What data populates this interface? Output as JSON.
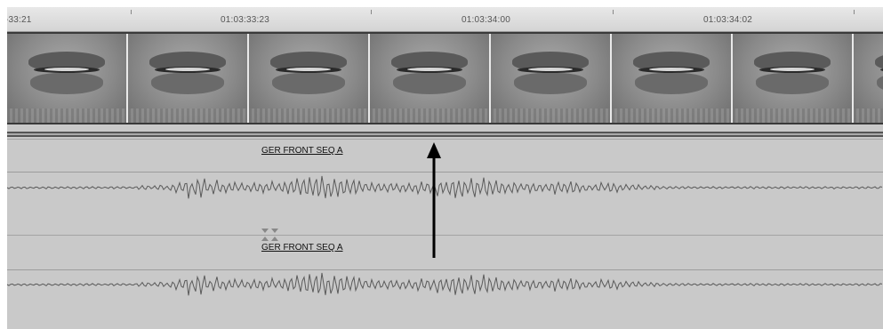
{
  "ruler": {
    "timecodes": [
      {
        "label": "-33:21"
      },
      {
        "label": "01:03:33:23"
      },
      {
        "label": "01:03:34:00"
      },
      {
        "label": "01:03:34:02"
      }
    ]
  },
  "video_track": {
    "frame_count": 8
  },
  "audio_tracks": [
    {
      "clip_name": "GER FRONT SEQ A"
    },
    {
      "clip_name": "GER FRONT SEQ A"
    }
  ],
  "colors": {
    "ruler": "#dcdcdc",
    "track_bg": "#c9c9c9",
    "waveform": "#5a5a5a",
    "arrow": "#000000"
  },
  "icons": {
    "in_out_marker": "bowtie-marker-icon",
    "playhead_arrow": "up-arrow-icon"
  }
}
